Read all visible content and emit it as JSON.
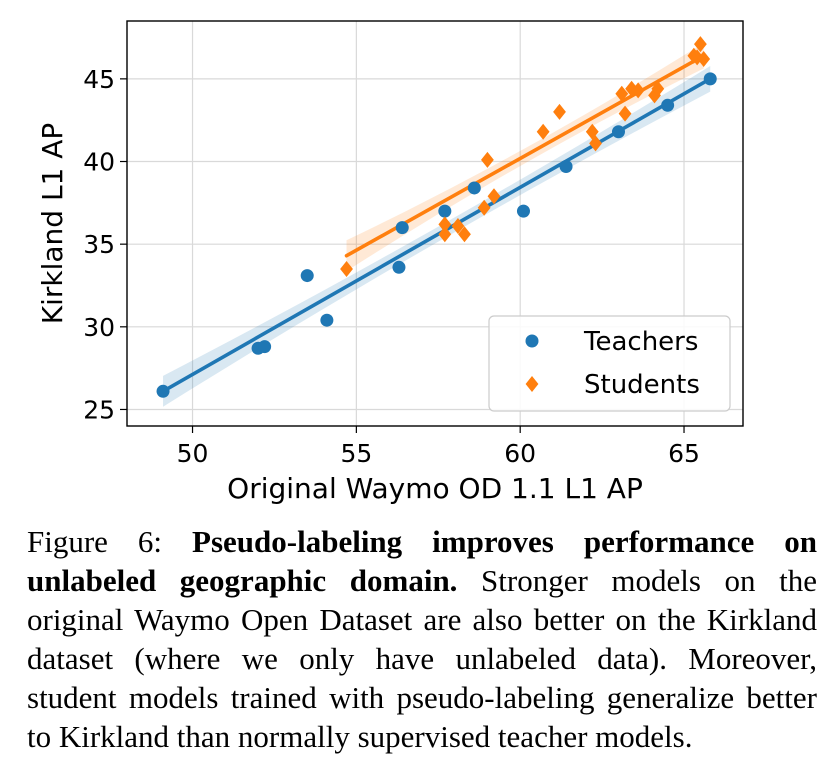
{
  "chart_data": {
    "type": "scatter",
    "xlabel": "Original Waymo OD 1.1 L1 AP",
    "ylabel": "Kirkland L1 AP",
    "xlim": [
      48,
      66.8
    ],
    "ylim": [
      24,
      48.5
    ],
    "xticks": [
      50,
      55,
      60,
      65
    ],
    "yticks": [
      25,
      30,
      35,
      40,
      45
    ],
    "grid": true,
    "legend_position": "lower-right",
    "series": [
      {
        "name": "Teachers",
        "marker": "circle",
        "color": "#1f77b4",
        "points": [
          [
            49.1,
            26.1
          ],
          [
            52.0,
            28.7
          ],
          [
            52.2,
            28.8
          ],
          [
            53.5,
            33.1
          ],
          [
            54.1,
            30.4
          ],
          [
            56.3,
            33.6
          ],
          [
            56.4,
            36.0
          ],
          [
            57.7,
            37.0
          ],
          [
            58.6,
            38.4
          ],
          [
            60.1,
            37.0
          ],
          [
            61.4,
            39.7
          ],
          [
            63.0,
            41.8
          ],
          [
            64.5,
            43.4
          ],
          [
            65.8,
            45.0
          ]
        ],
        "fit": {
          "x_start": 49.1,
          "x_end": 65.8,
          "y_start": 26.1,
          "y_end": 45.0
        }
      },
      {
        "name": "Students",
        "marker": "diamond",
        "color": "#ff7f0e",
        "points": [
          [
            54.7,
            33.5
          ],
          [
            57.7,
            35.6
          ],
          [
            57.7,
            36.2
          ],
          [
            58.1,
            36.1
          ],
          [
            58.3,
            35.6
          ],
          [
            58.9,
            37.2
          ],
          [
            59.0,
            40.1
          ],
          [
            59.2,
            37.9
          ],
          [
            60.7,
            41.8
          ],
          [
            61.2,
            43.0
          ],
          [
            62.2,
            41.8
          ],
          [
            62.3,
            41.1
          ],
          [
            63.1,
            44.1
          ],
          [
            63.2,
            42.9
          ],
          [
            63.4,
            44.4
          ],
          [
            63.6,
            44.3
          ],
          [
            64.1,
            44.0
          ],
          [
            64.2,
            44.4
          ],
          [
            65.3,
            46.4
          ],
          [
            65.4,
            46.3
          ],
          [
            65.5,
            47.1
          ],
          [
            65.6,
            46.2
          ]
        ],
        "fit": {
          "x_start": 54.7,
          "x_end": 65.6,
          "y_start": 34.3,
          "y_end": 46.4
        }
      }
    ]
  },
  "caption": {
    "label": "Figure 6: ",
    "bold": "Pseudo-labeling improves performance on unlabeled geographic domain.",
    "text": " Stronger models on the original Waymo Open Dataset are also better on the Kirkland dataset (where we only have unlabeled data). Moreover, student models trained with pseudo-labeling generalize better to Kirkland than normally supervised teacher models."
  }
}
